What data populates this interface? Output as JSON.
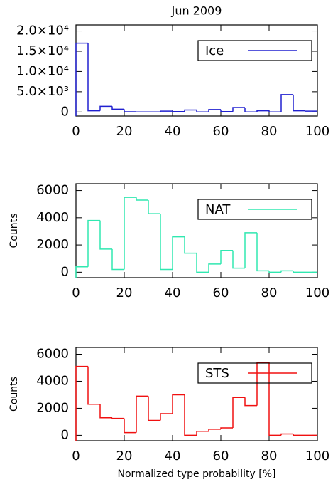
{
  "chart_data": [
    {
      "type": "histogram",
      "title": "Jun 2009",
      "bins": [
        0,
        5,
        10,
        15,
        20,
        25,
        30,
        35,
        40,
        45,
        50,
        55,
        60,
        65,
        70,
        75,
        80,
        85,
        90,
        95,
        100
      ],
      "series": [
        {
          "name": "Ice",
          "color": "#2020d0",
          "values": [
            17000,
            300,
            1400,
            700,
            50,
            0,
            0,
            200,
            100,
            500,
            0,
            600,
            100,
            1100,
            0,
            300,
            0,
            4300,
            300,
            200
          ]
        }
      ],
      "xlim": [
        0,
        100
      ],
      "xticks": [
        0,
        20,
        40,
        60,
        80,
        100
      ],
      "ylim": [
        -1000,
        21500
      ],
      "yticks": [
        0,
        {
          "value": 5000,
          "label": "5.0×10³"
        },
        {
          "value": 10000,
          "label": "1.0×10⁴"
        },
        {
          "value": 15000,
          "label": "1.5×10⁴"
        },
        {
          "value": 20000,
          "label": "2.0×10⁴"
        }
      ],
      "legend": "upper right"
    },
    {
      "type": "histogram",
      "ylabel": "Counts",
      "bins": [
        0,
        5,
        10,
        15,
        20,
        25,
        30,
        35,
        40,
        45,
        50,
        55,
        60,
        65,
        70,
        75,
        80,
        85,
        90,
        95,
        100
      ],
      "series": [
        {
          "name": "NAT",
          "color": "#30e8b0",
          "values": [
            400,
            3800,
            1700,
            200,
            5500,
            5300,
            4300,
            200,
            2600,
            1400,
            0,
            600,
            1600,
            300,
            2900,
            100,
            0,
            100,
            0,
            0
          ]
        }
      ],
      "xlim": [
        0,
        100
      ],
      "xticks": [
        0,
        20,
        40,
        60,
        80,
        100
      ],
      "ylim": [
        -400,
        6500
      ],
      "yticks": [
        0,
        2000,
        4000,
        6000
      ],
      "legend": "upper right"
    },
    {
      "type": "histogram",
      "ylabel": "Counts",
      "xlabel": "Normalized type probability [%]",
      "bins": [
        0,
        5,
        10,
        15,
        20,
        25,
        30,
        35,
        40,
        45,
        50,
        55,
        60,
        65,
        70,
        75,
        80,
        85,
        90,
        95,
        100
      ],
      "series": [
        {
          "name": "STS",
          "color": "#f01010",
          "values": [
            5100,
            2300,
            1300,
            1250,
            200,
            2900,
            1100,
            1600,
            3000,
            0,
            300,
            450,
            550,
            2800,
            2200,
            5400,
            0,
            100,
            0,
            0
          ]
        }
      ],
      "xlim": [
        0,
        100
      ],
      "xticks": [
        0,
        20,
        40,
        60,
        80,
        100
      ],
      "ylim": [
        -400,
        6500
      ],
      "yticks": [
        0,
        2000,
        4000,
        6000
      ],
      "legend": "upper right"
    }
  ]
}
